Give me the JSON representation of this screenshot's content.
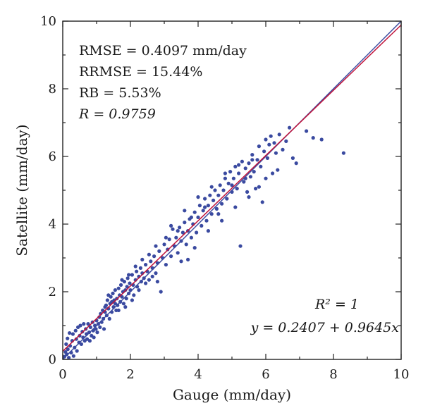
{
  "chart_data": {
    "type": "scatter",
    "xlabel": "Gauge (mm/day)",
    "ylabel": "Satellite (mm/day)",
    "xlim": [
      0,
      10
    ],
    "ylim": [
      0,
      10
    ],
    "x_ticks": [
      "0",
      "2",
      "4",
      "6",
      "8",
      "10"
    ],
    "y_ticks": [
      "0",
      "2",
      "4",
      "6",
      "8",
      "10"
    ],
    "grid": false,
    "legend": "none",
    "annotations": {
      "rmse": "RMSE = 0.4097 mm/day",
      "rrmse": "RRMSE = 15.44%",
      "rb": "RB = 5.53%",
      "r": "R = 0.9759",
      "r_squared": "R² = 1",
      "fit_equation": "y = 0.2407 + 0.9645x"
    },
    "lines": [
      {
        "kind": "identity",
        "intercept": 0,
        "slope": 1,
        "color": "#3a4aa0"
      },
      {
        "kind": "regression",
        "intercept": 0.2407,
        "slope": 0.9645,
        "color": "#c0143c"
      }
    ],
    "point_color": "#3a4aa0",
    "points": [
      [
        0.05,
        0.08
      ],
      [
        0.08,
        0.22
      ],
      [
        0.1,
        0.45
      ],
      [
        0.12,
        0.15
      ],
      [
        0.14,
        0.62
      ],
      [
        0.15,
        0.3
      ],
      [
        0.18,
        0.05
      ],
      [
        0.2,
        0.78
      ],
      [
        0.22,
        0.4
      ],
      [
        0.25,
        0.2
      ],
      [
        0.28,
        0.55
      ],
      [
        0.3,
        0.75
      ],
      [
        0.32,
        0.1
      ],
      [
        0.35,
        0.35
      ],
      [
        0.38,
        0.85
      ],
      [
        0.4,
        0.6
      ],
      [
        0.42,
        0.25
      ],
      [
        0.45,
        0.95
      ],
      [
        0.48,
        0.5
      ],
      [
        0.5,
        0.7
      ],
      [
        0.52,
        1.0
      ],
      [
        0.55,
        0.45
      ],
      [
        0.58,
        0.82
      ],
      [
        0.6,
        0.65
      ],
      [
        0.62,
        1.05
      ],
      [
        0.65,
        0.55
      ],
      [
        0.68,
        0.9
      ],
      [
        0.7,
        0.75
      ],
      [
        0.72,
        0.6
      ],
      [
        0.75,
        1.05
      ],
      [
        0.78,
        0.8
      ],
      [
        0.8,
        0.55
      ],
      [
        0.82,
        0.95
      ],
      [
        0.85,
        0.7
      ],
      [
        0.88,
        1.1
      ],
      [
        0.9,
        0.85
      ],
      [
        0.92,
        0.65
      ],
      [
        0.95,
        1.0
      ],
      [
        0.98,
        0.9
      ],
      [
        1.0,
        1.15
      ],
      [
        1.02,
        0.8
      ],
      [
        1.05,
        1.05
      ],
      [
        1.08,
        1.25
      ],
      [
        1.1,
        0.95
      ],
      [
        1.12,
        1.35
      ],
      [
        1.15,
        1.1
      ],
      [
        1.18,
        1.45
      ],
      [
        1.2,
        1.2
      ],
      [
        1.22,
        0.9
      ],
      [
        1.25,
        1.4
      ],
      [
        1.28,
        1.6
      ],
      [
        1.3,
        1.3
      ],
      [
        1.32,
        1.75
      ],
      [
        1.35,
        1.5
      ],
      [
        1.38,
        1.2
      ],
      [
        1.4,
        1.65
      ],
      [
        1.42,
        1.85
      ],
      [
        1.45,
        1.4
      ],
      [
        1.48,
        1.95
      ],
      [
        1.5,
        1.55
      ],
      [
        1.52,
        1.75
      ],
      [
        1.55,
        2.05
      ],
      [
        1.58,
        1.45
      ],
      [
        1.6,
        1.8
      ],
      [
        1.62,
        1.6
      ],
      [
        1.65,
        2.1
      ],
      [
        1.68,
        1.9
      ],
      [
        1.7,
        1.7
      ],
      [
        1.72,
        2.2
      ],
      [
        1.75,
        1.85
      ],
      [
        1.78,
        2.0
      ],
      [
        1.8,
        1.65
      ],
      [
        1.82,
        2.3
      ],
      [
        1.85,
        2.05
      ],
      [
        1.88,
        1.8
      ],
      [
        1.9,
        2.15
      ],
      [
        1.92,
        2.4
      ],
      [
        1.95,
        1.95
      ],
      [
        1.98,
        2.25
      ],
      [
        2.0,
        2.05
      ],
      [
        2.05,
        2.5
      ],
      [
        2.08,
        2.2
      ],
      [
        2.1,
        1.9
      ],
      [
        2.15,
        2.35
      ],
      [
        2.18,
        2.6
      ],
      [
        2.2,
        2.15
      ],
      [
        2.25,
        2.45
      ],
      [
        2.3,
        2.7
      ],
      [
        2.32,
        2.3
      ],
      [
        2.35,
        2.55
      ],
      [
        2.4,
        2.4
      ],
      [
        2.45,
        2.8
      ],
      [
        2.5,
        2.6
      ],
      [
        2.55,
        2.35
      ],
      [
        2.6,
        2.9
      ],
      [
        2.65,
        2.7
      ],
      [
        2.7,
        3.05
      ],
      [
        2.75,
        2.55
      ],
      [
        2.8,
        2.85
      ],
      [
        2.85,
        3.2
      ],
      [
        2.9,
        2.0
      ],
      [
        2.95,
        3.0
      ],
      [
        3.0,
        3.4
      ],
      [
        3.05,
        2.8
      ],
      [
        3.1,
        3.25
      ],
      [
        3.15,
        3.55
      ],
      [
        3.2,
        3.05
      ],
      [
        3.25,
        3.85
      ],
      [
        3.3,
        3.35
      ],
      [
        3.35,
        3.6
      ],
      [
        3.4,
        3.15
      ],
      [
        3.45,
        3.9
      ],
      [
        3.5,
        3.5
      ],
      [
        3.55,
        3.75
      ],
      [
        3.6,
        4.05
      ],
      [
        3.65,
        3.4
      ],
      [
        3.7,
        3.8
      ],
      [
        3.75,
        4.15
      ],
      [
        3.8,
        3.6
      ],
      [
        3.85,
        4.0
      ],
      [
        3.9,
        4.35
      ],
      [
        3.95,
        3.75
      ],
      [
        4.0,
        4.2
      ],
      [
        4.05,
        4.55
      ],
      [
        4.1,
        3.95
      ],
      [
        4.15,
        4.4
      ],
      [
        4.2,
        4.75
      ],
      [
        4.25,
        4.1
      ],
      [
        4.3,
        4.55
      ],
      [
        4.35,
        4.85
      ],
      [
        4.4,
        4.3
      ],
      [
        4.45,
        4.7
      ],
      [
        4.5,
        5.0
      ],
      [
        4.55,
        4.45
      ],
      [
        4.6,
        4.85
      ],
      [
        4.65,
        5.15
      ],
      [
        4.7,
        4.6
      ],
      [
        4.75,
        5.0
      ],
      [
        4.8,
        5.35
      ],
      [
        4.85,
        4.75
      ],
      [
        4.9,
        5.2
      ],
      [
        4.95,
        5.55
      ],
      [
        5.0,
        4.95
      ],
      [
        5.05,
        5.35
      ],
      [
        5.1,
        5.7
      ],
      [
        5.15,
        5.05
      ],
      [
        5.2,
        5.5
      ],
      [
        5.25,
        3.35
      ],
      [
        5.3,
        5.85
      ],
      [
        5.35,
        5.25
      ],
      [
        5.4,
        5.65
      ],
      [
        5.45,
        4.95
      ],
      [
        5.5,
        5.8
      ],
      [
        5.55,
        5.4
      ],
      [
        5.6,
        6.05
      ],
      [
        5.65,
        5.55
      ],
      [
        5.7,
        5.05
      ],
      [
        5.75,
        5.9
      ],
      [
        5.8,
        6.3
      ],
      [
        5.85,
        5.7
      ],
      [
        5.9,
        4.65
      ],
      [
        5.95,
        6.15
      ],
      [
        6.0,
        6.5
      ],
      [
        6.05,
        5.95
      ],
      [
        6.1,
        6.35
      ],
      [
        6.15,
        6.6
      ],
      [
        6.2,
        5.5
      ],
      [
        6.25,
        6.4
      ],
      [
        6.3,
        6.1
      ],
      [
        6.35,
        5.6
      ],
      [
        6.4,
        6.65
      ],
      [
        6.5,
        6.2
      ],
      [
        6.6,
        6.45
      ],
      [
        6.7,
        6.85
      ],
      [
        6.8,
        5.95
      ],
      [
        6.9,
        5.8
      ],
      [
        7.2,
        6.75
      ],
      [
        7.4,
        6.55
      ],
      [
        7.65,
        6.5
      ],
      [
        8.3,
        6.1
      ],
      [
        1.25,
        1.55
      ],
      [
        1.35,
        1.9
      ],
      [
        1.45,
        1.7
      ],
      [
        1.55,
        1.65
      ],
      [
        1.65,
        1.45
      ],
      [
        1.75,
        2.35
      ],
      [
        1.85,
        1.55
      ],
      [
        1.95,
        2.5
      ],
      [
        2.05,
        1.75
      ],
      [
        2.15,
        2.75
      ],
      [
        2.25,
        2.05
      ],
      [
        2.35,
        2.95
      ],
      [
        2.45,
        2.25
      ],
      [
        2.55,
        3.1
      ],
      [
        2.65,
        2.45
      ],
      [
        2.75,
        3.35
      ],
      [
        3.05,
        3.6
      ],
      [
        3.2,
        3.95
      ],
      [
        3.4,
        3.8
      ],
      [
        3.6,
        4.4
      ],
      [
        3.8,
        4.2
      ],
      [
        4.0,
        4.8
      ],
      [
        4.2,
        4.5
      ],
      [
        4.4,
        5.1
      ],
      [
        4.6,
        4.3
      ],
      [
        4.8,
        5.5
      ],
      [
        5.0,
        5.15
      ],
      [
        5.2,
        5.75
      ],
      [
        5.4,
        5.35
      ],
      [
        5.6,
        5.9
      ],
      [
        2.8,
        2.3
      ],
      [
        3.5,
        2.9
      ],
      [
        3.9,
        3.3
      ],
      [
        4.3,
        3.8
      ],
      [
        4.7,
        4.1
      ],
      [
        5.1,
        4.5
      ],
      [
        5.5,
        4.8
      ],
      [
        5.8,
        5.1
      ],
      [
        6.0,
        5.35
      ],
      [
        3.7,
        2.95
      ]
    ]
  }
}
